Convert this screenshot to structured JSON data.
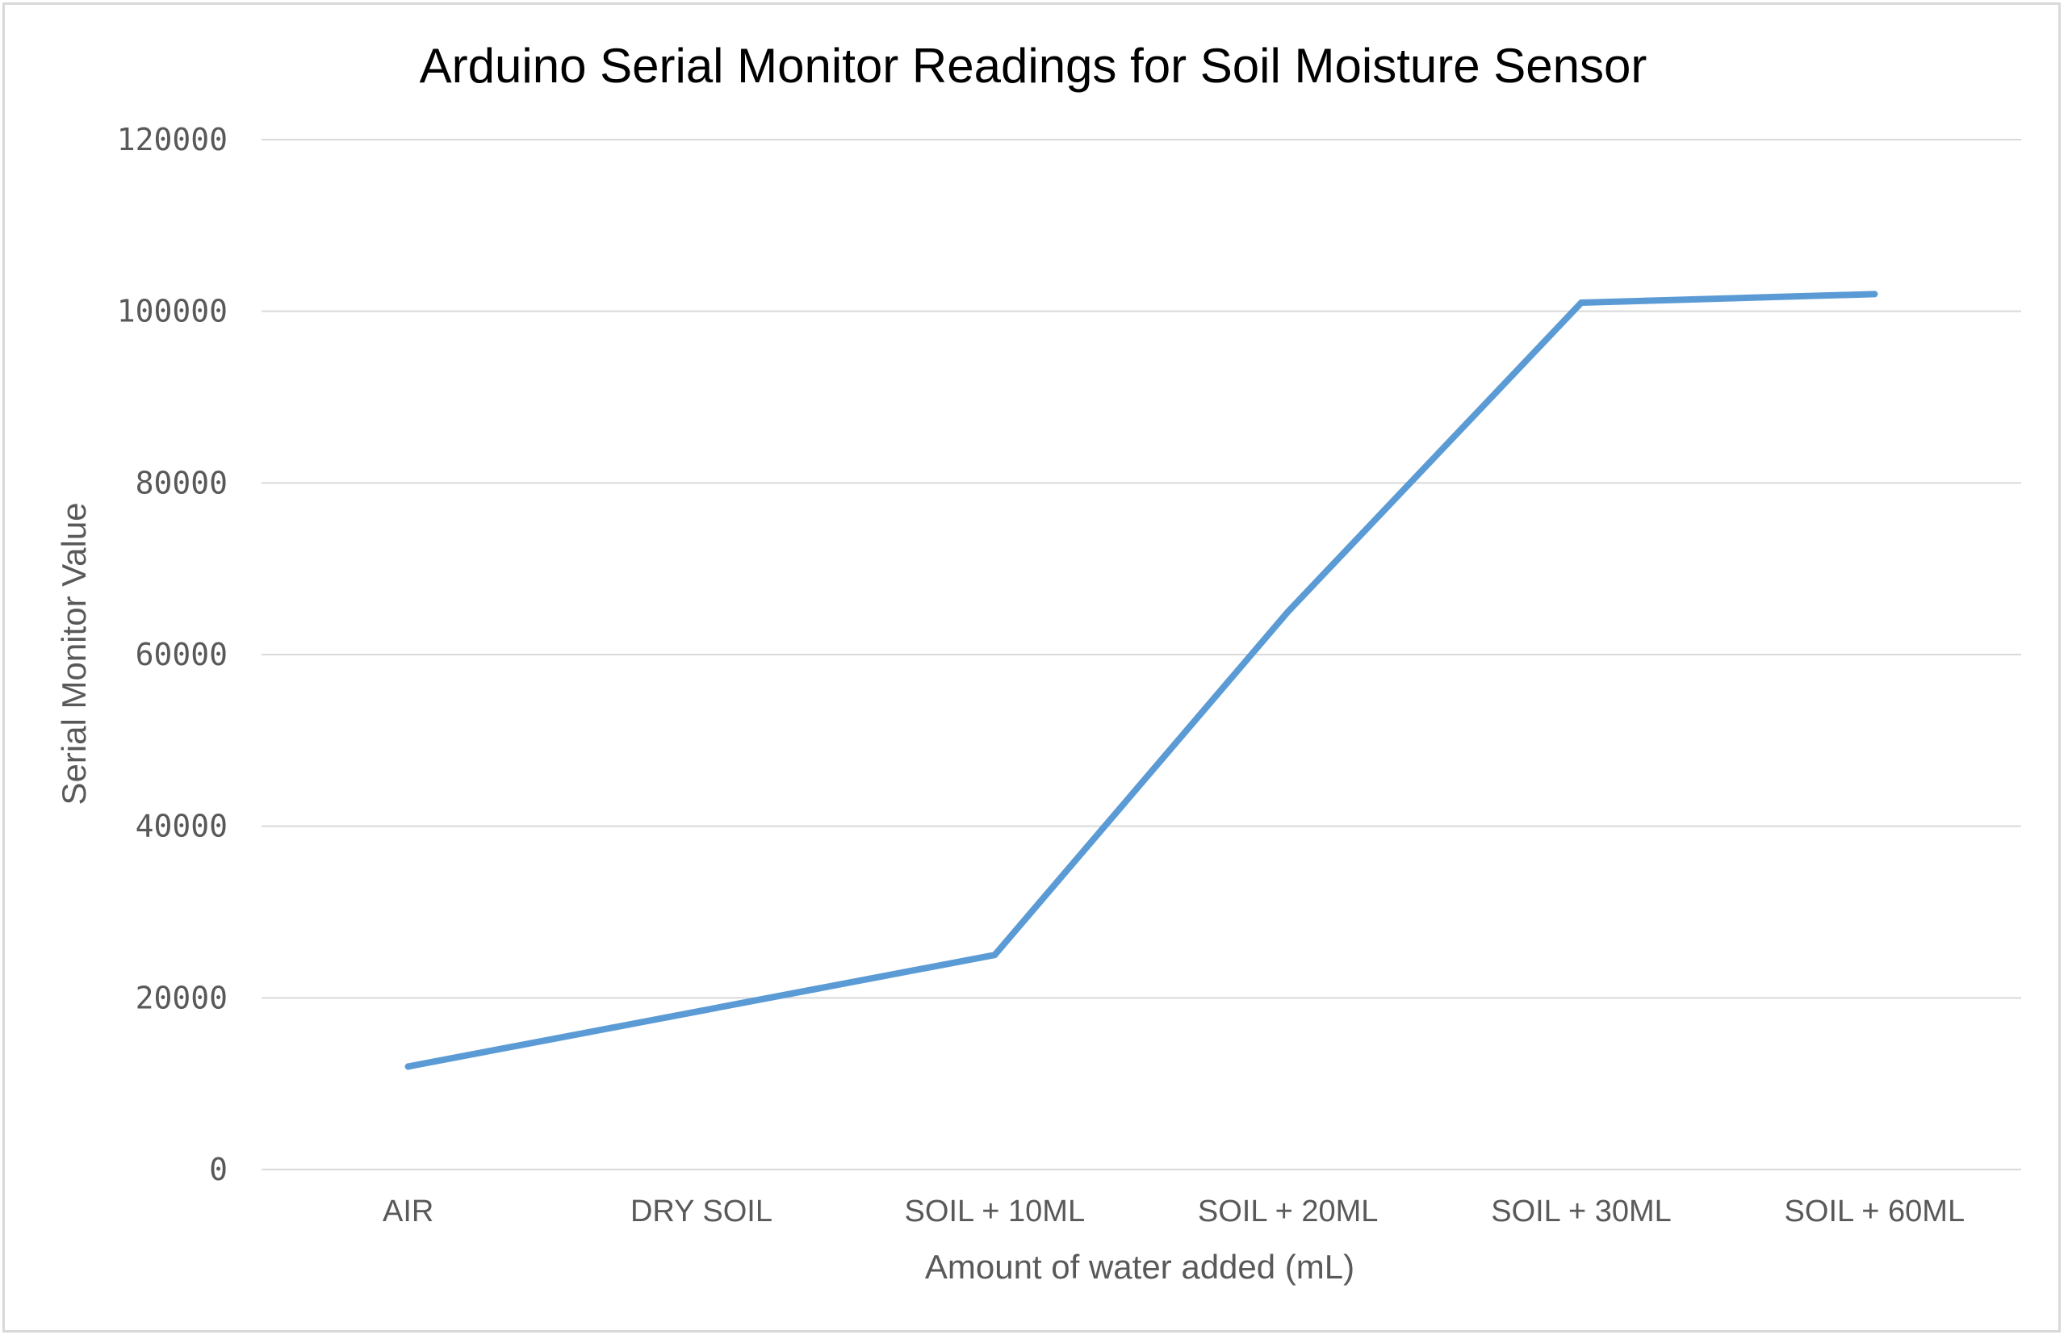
{
  "chart_data": {
    "type": "line",
    "title": "Arduino Serial Monitor Readings for Soil Moisture Sensor",
    "xlabel": "Amount of water added (mL)",
    "ylabel": "Serial Monitor Value",
    "categories": [
      "AIR",
      "DRY SOIL",
      "SOIL + 10ML",
      "SOIL + 20ML",
      "SOIL + 30ML",
      "SOIL + 60ML"
    ],
    "series": [
      {
        "values": [
          12000,
          18500,
          25000,
          65000,
          101000,
          102000
        ],
        "color": "#5b9bd5"
      }
    ],
    "ylim": [
      0,
      120000
    ],
    "yticks": [
      "0",
      "20000",
      "40000",
      "60000",
      "80000",
      "100000",
      "120000"
    ],
    "grid": true,
    "legend": "none"
  }
}
